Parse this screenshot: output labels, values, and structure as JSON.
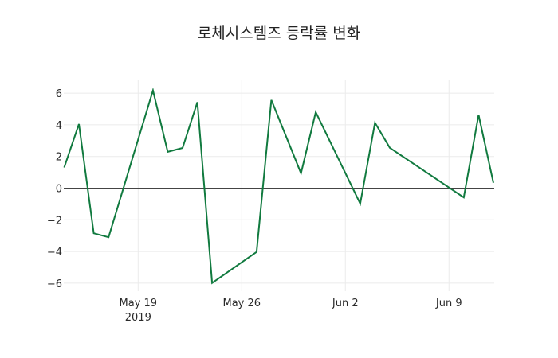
{
  "chart_data": {
    "type": "line",
    "title": "로체시스템즈 등락률 변화",
    "xlabel": "",
    "ylabel": "",
    "x": [
      "2019-05-14",
      "2019-05-15",
      "2019-05-16",
      "2019-05-17",
      "2019-05-20",
      "2019-05-21",
      "2019-05-22",
      "2019-05-23",
      "2019-05-24",
      "2019-05-27",
      "2019-05-28",
      "2019-05-30",
      "2019-05-31",
      "2019-06-03",
      "2019-06-04",
      "2019-06-05",
      "2019-06-10",
      "2019-06-11",
      "2019-06-12"
    ],
    "series": [
      {
        "name": "등락률",
        "color": "#117a3f",
        "values": [
          1.3,
          4.05,
          -2.85,
          -3.1,
          6.17,
          2.29,
          2.54,
          5.43,
          -5.99,
          -4.03,
          5.57,
          0.94,
          4.8,
          -0.98,
          4.13,
          2.55,
          -0.59,
          4.63,
          0.33
        ]
      }
    ],
    "x_ticks": [
      {
        "date": "2019-05-19",
        "label": "May 19",
        "sublabel": "2019"
      },
      {
        "date": "2019-05-26",
        "label": "May 26",
        "sublabel": ""
      },
      {
        "date": "2019-06-02",
        "label": "Jun 2",
        "sublabel": ""
      },
      {
        "date": "2019-06-09",
        "label": "Jun 9",
        "sublabel": ""
      }
    ],
    "y_ticks": [
      6,
      4,
      2,
      0,
      -2,
      -4,
      -6
    ],
    "ylim": [
      -6.5,
      6.8
    ],
    "grid": true,
    "zero_line": true,
    "legend": "none"
  }
}
